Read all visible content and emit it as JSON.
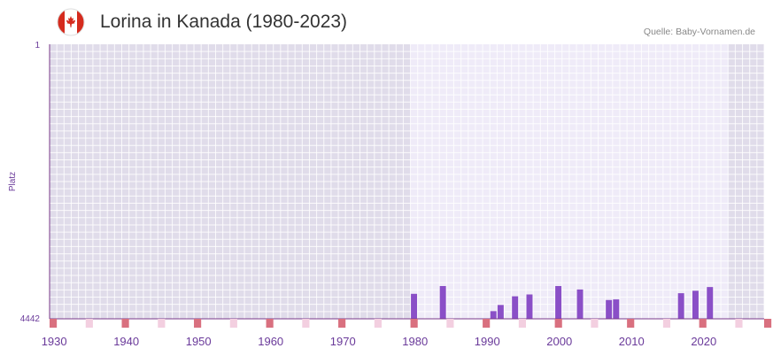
{
  "header": {
    "title": "Lorina in Kanada (1980-2023)",
    "source": "Quelle: Baby-Vornamen.de"
  },
  "colors": {
    "bar": "#8a4fc7",
    "axis": "#7a3a8a",
    "band_dark": "#e0dcea",
    "band_light": "#efebf8",
    "decade_marker": "#d9707f",
    "mid_marker": "#f3cfe0"
  },
  "chart_data": {
    "type": "bar",
    "title": "Lorina in Kanada (1980-2023)",
    "ylabel": "Platz",
    "y_axis": {
      "top_label": "1",
      "bottom_label": "4442",
      "inverted": true,
      "ylim": [
        1,
        4442
      ]
    },
    "x_axis": {
      "range": [
        1929,
        2028
      ],
      "ticks": [
        1930,
        1940,
        1950,
        1960,
        1970,
        1980,
        1990,
        2000,
        2010,
        2020
      ]
    },
    "data_range": [
      1979,
      2022
    ],
    "series": [
      {
        "name": "Platz",
        "x": [
          1979,
          1983,
          1990,
          1991,
          1993,
          1995,
          1999,
          2002,
          2006,
          2007,
          2016,
          2018,
          2020
        ],
        "values": [
          4038,
          3912,
          4318,
          4218,
          4078,
          4048,
          3912,
          3968,
          4138,
          4128,
          4028,
          3988,
          3928
        ]
      }
    ]
  }
}
